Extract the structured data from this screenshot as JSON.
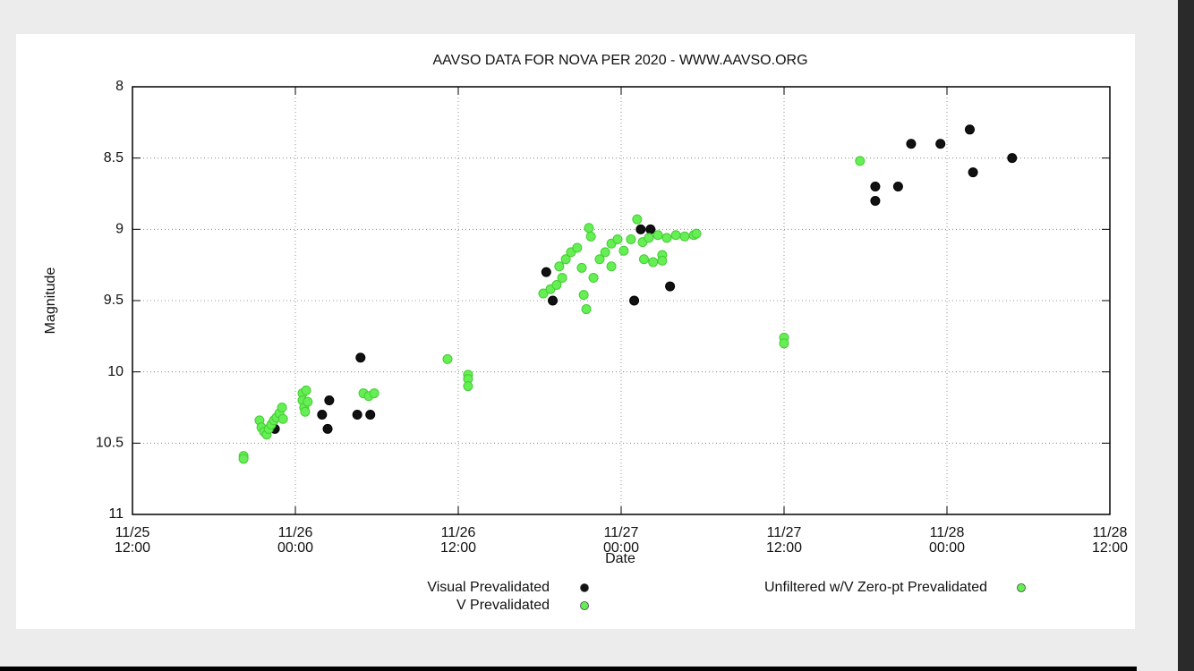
{
  "chart_data": {
    "type": "scatter",
    "title": "AAVSO DATA FOR NOVA PER 2020 - WWW.AAVSO.ORG",
    "x_label": "Date",
    "y_label": "Magnitude",
    "xlim": [
      25.5,
      28.5
    ],
    "xticks": [
      {
        "value": 25.5,
        "label": "11/25 12:00"
      },
      {
        "value": 26,
        "label": "11/26 00:00"
      },
      {
        "value": 26.5,
        "label": "11/26 12:00"
      },
      {
        "value": 27,
        "label": "11/27 00:00"
      },
      {
        "value": 27.5,
        "label": "11/27 12:00"
      },
      {
        "value": 28,
        "label": "11/28 00:00"
      },
      {
        "value": 28.5,
        "label": "11/28 12:00"
      }
    ],
    "ylim": [
      8,
      11
    ],
    "yticks": [
      8,
      8.5,
      9,
      9.5,
      10,
      10.5,
      11
    ],
    "y_inverted": true,
    "grid": true,
    "series": [
      {
        "name": "Visual Prevalidated",
        "color": "#111111",
        "x": [
          25.937,
          26.082,
          26.099,
          26.104,
          26.19,
          26.2,
          26.23,
          26.77,
          26.79,
          27.04,
          27.06,
          27.09,
          27.15,
          27.78,
          27.78,
          27.85,
          27.89,
          27.98,
          28.07,
          28.08,
          28.2
        ],
        "values": [
          10.4,
          10.3,
          10.4,
          10.2,
          10.3,
          9.9,
          10.3,
          9.3,
          9.5,
          9.5,
          9.0,
          9.0,
          9.4,
          8.7,
          8.8,
          8.7,
          8.4,
          8.4,
          8.3,
          8.6,
          8.5
        ]
      },
      {
        "name": "V Prevalidated",
        "color": "#66ee55",
        "x": [
          25.841,
          25.841,
          25.89,
          25.896,
          25.904,
          25.912,
          25.918,
          25.926,
          25.934,
          25.942,
          25.951,
          25.959,
          25.962,
          26.022,
          26.022,
          26.027,
          26.03,
          26.033,
          26.038,
          26.209,
          26.225,
          26.242,
          26.467,
          26.53,
          26.53,
          26.53,
          26.761,
          26.783,
          26.802,
          26.819,
          26.81,
          26.83,
          26.846,
          26.865,
          26.879,
          26.885,
          26.893,
          26.901,
          26.907,
          26.915,
          26.934,
          26.951,
          26.97,
          26.989,
          27.008,
          27.03,
          27.049,
          27.066,
          27.085,
          27.113,
          27.126,
          27.14,
          27.168,
          27.195,
          27.223,
          27.231,
          26.97
        ],
        "values": [
          10.59,
          10.61,
          10.34,
          10.39,
          10.42,
          10.44,
          10.4,
          10.37,
          10.34,
          10.32,
          10.29,
          10.25,
          10.33,
          10.15,
          10.2,
          10.25,
          10.28,
          10.13,
          10.21,
          10.15,
          10.17,
          10.15,
          9.91,
          10.02,
          10.05,
          10.1,
          9.45,
          9.42,
          9.39,
          9.34,
          9.26,
          9.21,
          9.16,
          9.13,
          9.27,
          9.46,
          9.56,
          8.99,
          9.05,
          9.34,
          9.21,
          9.16,
          9.1,
          9.07,
          9.15,
          9.07,
          8.93,
          9.09,
          9.06,
          9.04,
          9.18,
          9.06,
          9.04,
          9.05,
          9.04,
          9.03,
          9.26
        ]
      },
      {
        "name": "Unfiltered w/V Zero-pt Prevalidated",
        "color": "#66ee55",
        "x": [
          27.733,
          27.5,
          27.5,
          27.07,
          27.098,
          27.126
        ],
        "values": [
          8.52,
          9.76,
          9.8,
          9.21,
          9.23,
          9.22
        ]
      }
    ]
  }
}
